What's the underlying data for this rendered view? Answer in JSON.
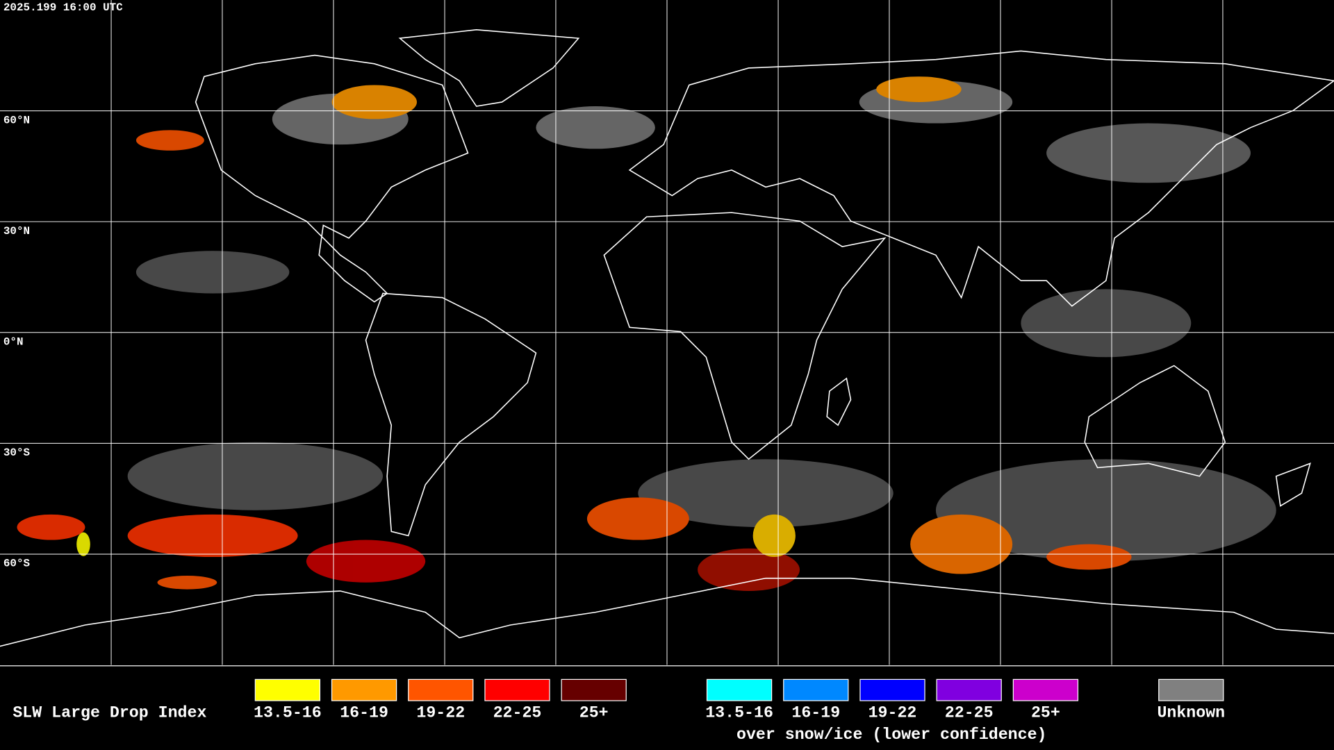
{
  "header": {
    "timestamp": "2025.199 16:00 UTC"
  },
  "map": {
    "latitude_labels": [
      "60°N",
      "30°N",
      "0°N",
      "30°S",
      "60°S"
    ]
  },
  "legend": {
    "title": "SLW Large Drop Index",
    "items": [
      {
        "label": "13.5-16",
        "color": "#ffff00"
      },
      {
        "label": "16-19",
        "color": "#ff9900"
      },
      {
        "label": "19-22",
        "color": "#ff5500"
      },
      {
        "label": "22-25",
        "color": "#ff0000"
      },
      {
        "label": "25+",
        "color": "#660000"
      }
    ],
    "snow_ice_items": [
      {
        "label": "13.5-16",
        "color": "#00ffff"
      },
      {
        "label": "16-19",
        "color": "#0088ff"
      },
      {
        "label": "19-22",
        "color": "#0000ff"
      },
      {
        "label": "22-25",
        "color": "#8000e0"
      },
      {
        "label": "25+",
        "color": "#cc00cc"
      }
    ],
    "snow_ice_note": "over snow/ice (lower confidence)",
    "unknown": {
      "label": "Unknown",
      "color": "#808080"
    }
  }
}
